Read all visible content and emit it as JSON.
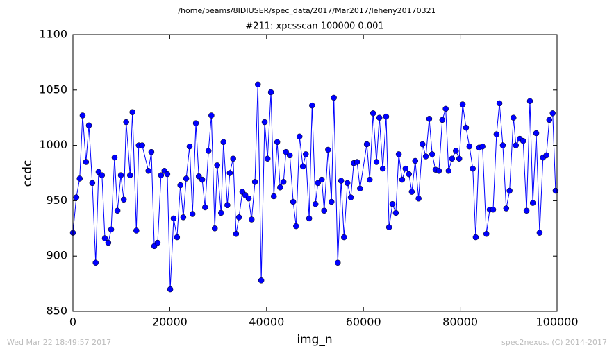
{
  "chart_data": {
    "type": "line",
    "header": "/home/beams/8IDIUSER/spec_data/2017/Mar2017/leheny20170321",
    "title": "#211: xpcsscan 100000 0.001",
    "xlabel": "img_n",
    "ylabel": "ccdc",
    "footer_left": "Wed Mar 22 18:49:57 2017",
    "footer_right": "spec2nexus, (C) 2014-2017",
    "xlim": [
      0,
      100000
    ],
    "xticks": [
      0,
      20000,
      40000,
      60000,
      80000,
      100000
    ],
    "ylim": [
      850,
      1100
    ],
    "yticks": [
      850,
      900,
      950,
      1000,
      1050,
      1100
    ],
    "x": [
      0,
      700,
      1400,
      2000,
      2700,
      3300,
      4000,
      4700,
      5300,
      6000,
      6600,
      7300,
      7900,
      8600,
      9200,
      9900,
      10500,
      11000,
      11800,
      12300,
      13100,
      13600,
      14300,
      15600,
      16200,
      16800,
      17500,
      18200,
      18900,
      19500,
      20100,
      20800,
      21500,
      22200,
      22800,
      23400,
      24100,
      24700,
      25400,
      26000,
      26700,
      27300,
      28000,
      28600,
      29300,
      29800,
      30600,
      31100,
      31900,
      32400,
      33100,
      33700,
      34300,
      35000,
      35600,
      36300,
      36900,
      37600,
      38200,
      38900,
      39600,
      40200,
      40900,
      41500,
      42200,
      42800,
      43500,
      44000,
      44800,
      45500,
      46100,
      46800,
      47500,
      48100,
      48800,
      49400,
      50100,
      50600,
      51400,
      51900,
      52700,
      53400,
      53900,
      54700,
      55400,
      56000,
      56700,
      57400,
      58000,
      58700,
      59300,
      60700,
      61300,
      62000,
      62700,
      63300,
      64000,
      64700,
      65300,
      66000,
      66700,
      67300,
      68000,
      68700,
      69400,
      70000,
      70700,
      71400,
      72200,
      72900,
      73600,
      74200,
      74900,
      75600,
      76300,
      77000,
      77600,
      78300,
      79100,
      79800,
      80500,
      81200,
      81900,
      82600,
      83200,
      83900,
      84600,
      85400,
      86100,
      86800,
      87500,
      88100,
      88800,
      89500,
      90200,
      91000,
      91500,
      92300,
      93000,
      93700,
      94400,
      95000,
      95700,
      96400,
      97100,
      97800,
      98400,
      99100,
      99700
    ],
    "series": [
      {
        "name": "ccdc",
        "color": "#0000ff",
        "values": [
          921,
          953,
          970,
          1027,
          985,
          1018,
          966,
          894,
          976,
          973,
          916,
          912,
          924,
          989,
          941,
          973,
          951,
          1021,
          973,
          1030,
          923,
          1000,
          1000,
          977,
          994,
          909,
          912,
          973,
          977,
          974,
          870,
          934,
          917,
          964,
          935,
          970,
          999,
          938,
          1020,
          972,
          969,
          944,
          995,
          1027,
          925,
          982,
          939,
          1003,
          946,
          975,
          988,
          920,
          935,
          958,
          955,
          952,
          933,
          967,
          1055,
          878,
          1021,
          988,
          1048,
          954,
          1003,
          962,
          967,
          994,
          991,
          949,
          927,
          1008,
          981,
          992,
          934,
          1036,
          947,
          966,
          969,
          941,
          996,
          949,
          1043,
          894,
          968,
          917,
          966,
          953,
          984,
          985,
          961,
          1001,
          969,
          1029,
          985,
          1025,
          979,
          1026,
          926,
          947,
          939,
          992,
          969,
          979,
          974,
          958,
          986,
          952,
          1001,
          990,
          1024,
          992,
          978,
          977,
          1023,
          1033,
          977,
          988,
          995,
          988,
          1037,
          1016,
          999,
          979,
          917,
          998,
          999,
          920,
          942,
          942,
          1010,
          1038,
          1000,
          943,
          959,
          1025,
          1000,
          1006,
          1004,
          941,
          1040,
          948,
          1011,
          921,
          989,
          991,
          1023,
          1029,
          959
        ]
      }
    ]
  }
}
